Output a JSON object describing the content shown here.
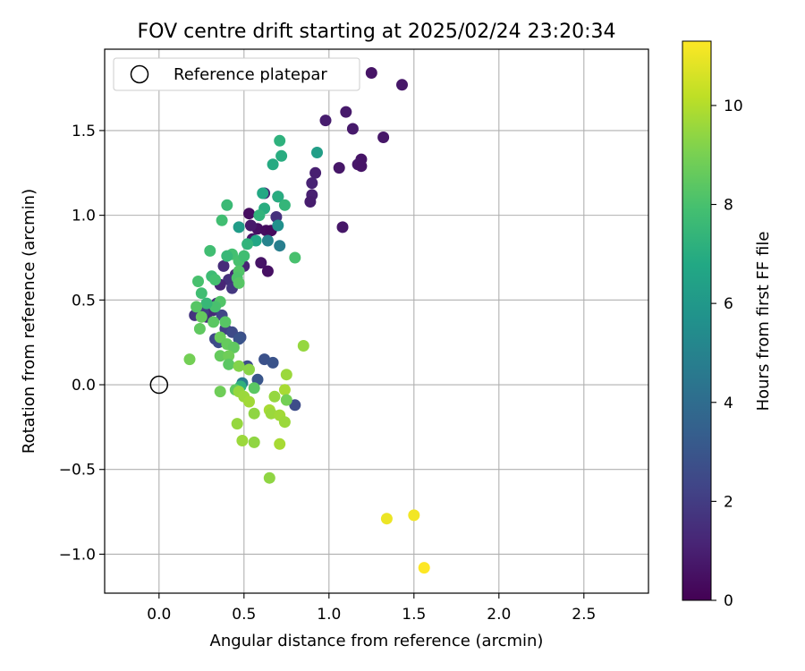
{
  "chart_data": {
    "type": "scatter",
    "title": "FOV centre drift starting at 2025/02/24 23:20:34",
    "xlabel": "Angular distance from reference (arcmin)",
    "ylabel": "Rotation from reference (arcmin)",
    "xlim": [
      -0.32,
      2.88
    ],
    "ylim": [
      -1.23,
      1.98
    ],
    "xticks": [
      0.0,
      0.5,
      1.0,
      1.5,
      2.0,
      2.5
    ],
    "xtick_labels": [
      "0.0",
      "0.5",
      "1.0",
      "1.5",
      "2.0",
      "2.5"
    ],
    "yticks": [
      -1.0,
      -0.5,
      0.0,
      0.5,
      1.0,
      1.5
    ],
    "ytick_labels": [
      "−1.0",
      "−0.5",
      "0.0",
      "0.5",
      "1.0",
      "1.5"
    ],
    "grid": true,
    "legend": {
      "placement": "upper-left",
      "entries": [
        "Reference platepar"
      ]
    },
    "reference_point": {
      "x": 0.0,
      "y": 0.0
    },
    "colorbar": {
      "label": "Hours from first FF file",
      "colormap": "viridis",
      "range": [
        0,
        11.3
      ],
      "ticks": [
        0,
        2,
        4,
        6,
        8,
        10
      ],
      "tick_labels": [
        "0",
        "2",
        "4",
        "6",
        "8",
        "10"
      ]
    },
    "points": [
      [
        1.25,
        1.84,
        0.6
      ],
      [
        1.43,
        1.77,
        0.7
      ],
      [
        1.1,
        1.61,
        0.8
      ],
      [
        0.98,
        1.56,
        0.9
      ],
      [
        1.14,
        1.51,
        0.8
      ],
      [
        1.32,
        1.46,
        0.7
      ],
      [
        1.19,
        1.33,
        0.6
      ],
      [
        1.17,
        1.3,
        0.7
      ],
      [
        1.19,
        1.29,
        0.6
      ],
      [
        1.06,
        1.28,
        0.7
      ],
      [
        0.92,
        1.25,
        1.0
      ],
      [
        0.9,
        1.19,
        1.1
      ],
      [
        0.9,
        1.12,
        1.0
      ],
      [
        0.89,
        1.08,
        0.9
      ],
      [
        1.08,
        0.93,
        0.7
      ],
      [
        0.53,
        1.01,
        0.4
      ],
      [
        0.58,
        0.92,
        0.5
      ],
      [
        0.63,
        0.91,
        0.4
      ],
      [
        0.66,
        0.91,
        0.3
      ],
      [
        0.6,
        0.72,
        0.6
      ],
      [
        0.64,
        0.67,
        0.5
      ],
      [
        0.54,
        0.94,
        0.8
      ],
      [
        0.55,
        0.86,
        0.7
      ],
      [
        0.5,
        0.7,
        1.1
      ],
      [
        0.45,
        0.65,
        1.2
      ],
      [
        0.38,
        0.7,
        1.4
      ],
      [
        0.41,
        0.62,
        1.6
      ],
      [
        0.43,
        0.57,
        1.8
      ],
      [
        0.36,
        0.59,
        1.2
      ],
      [
        0.34,
        0.48,
        1.5
      ],
      [
        0.32,
        0.44,
        1.3
      ],
      [
        0.28,
        0.4,
        1.4
      ],
      [
        0.21,
        0.41,
        1.7
      ],
      [
        0.26,
        0.43,
        2.0
      ],
      [
        0.37,
        0.41,
        2.3
      ],
      [
        0.39,
        0.33,
        2.1
      ],
      [
        0.33,
        0.27,
        2.4
      ],
      [
        0.35,
        0.25,
        2.6
      ],
      [
        0.43,
        0.31,
        2.5
      ],
      [
        0.48,
        0.28,
        2.7
      ],
      [
        0.47,
        0.27,
        2.9
      ],
      [
        0.52,
        0.11,
        2.6
      ],
      [
        0.62,
        0.15,
        2.8
      ],
      [
        0.67,
        0.13,
        2.9
      ],
      [
        0.58,
        0.03,
        3.0
      ],
      [
        0.8,
        -0.12,
        2.6
      ],
      [
        0.49,
        0.01,
        4.6
      ],
      [
        0.62,
        1.13,
        1.2
      ],
      [
        0.69,
        0.99,
        1.6
      ],
      [
        0.71,
        0.82,
        4.8
      ],
      [
        0.7,
        1.11,
        2.0
      ],
      [
        0.64,
        0.85,
        5.0
      ],
      [
        0.7,
        0.94,
        5.6
      ],
      [
        0.47,
        0.93,
        6.2
      ],
      [
        0.57,
        0.85,
        6.7
      ],
      [
        0.52,
        0.83,
        7.3
      ],
      [
        0.61,
        1.13,
        6.8
      ],
      [
        0.62,
        1.04,
        7.0
      ],
      [
        0.59,
        1.0,
        7.3
      ],
      [
        0.7,
        1.11,
        7.0
      ],
      [
        0.74,
        1.06,
        7.4
      ],
      [
        0.67,
        1.3,
        6.9
      ],
      [
        0.71,
        1.44,
        7.2
      ],
      [
        0.72,
        1.35,
        7.0
      ],
      [
        0.93,
        1.37,
        6.3
      ],
      [
        0.8,
        0.75,
        8.0
      ],
      [
        0.4,
        1.06,
        7.6
      ],
      [
        0.37,
        0.97,
        7.8
      ],
      [
        0.3,
        0.79,
        7.8
      ],
      [
        0.43,
        0.77,
        7.9
      ],
      [
        0.47,
        0.73,
        8.0
      ],
      [
        0.5,
        0.76,
        7.8
      ],
      [
        0.4,
        0.76,
        7.5
      ],
      [
        0.31,
        0.64,
        7.7
      ],
      [
        0.33,
        0.62,
        7.9
      ],
      [
        0.23,
        0.61,
        8.0
      ],
      [
        0.47,
        0.67,
        8.2
      ],
      [
        0.46,
        0.63,
        8.1
      ],
      [
        0.47,
        0.6,
        8.3
      ],
      [
        0.25,
        0.54,
        7.8
      ],
      [
        0.36,
        0.49,
        8.2
      ],
      [
        0.33,
        0.46,
        8.0
      ],
      [
        0.28,
        0.48,
        7.5
      ],
      [
        0.22,
        0.46,
        8.3
      ],
      [
        0.25,
        0.4,
        8.6
      ],
      [
        0.32,
        0.37,
        8.4
      ],
      [
        0.39,
        0.37,
        8.3
      ],
      [
        0.24,
        0.33,
        8.5
      ],
      [
        0.36,
        0.28,
        8.7
      ],
      [
        0.4,
        0.24,
        8.6
      ],
      [
        0.44,
        0.22,
        8.5
      ],
      [
        0.36,
        0.17,
        8.6
      ],
      [
        0.41,
        0.17,
        8.8
      ],
      [
        0.41,
        0.12,
        8.4
      ],
      [
        0.18,
        0.15,
        8.9
      ],
      [
        0.48,
        -0.01,
        7.2
      ],
      [
        0.36,
        -0.04,
        8.8
      ],
      [
        0.45,
        -0.03,
        8.5
      ],
      [
        0.56,
        -0.02,
        8.4
      ],
      [
        0.47,
        0.11,
        9.2
      ],
      [
        0.53,
        0.09,
        9.3
      ],
      [
        0.47,
        -0.04,
        9.5
      ],
      [
        0.5,
        -0.07,
        9.6
      ],
      [
        0.53,
        -0.1,
        9.7
      ],
      [
        0.56,
        -0.17,
        9.4
      ],
      [
        0.46,
        -0.23,
        9.5
      ],
      [
        0.49,
        -0.33,
        9.6
      ],
      [
        0.56,
        -0.34,
        9.4
      ],
      [
        0.65,
        -0.15,
        9.8
      ],
      [
        0.66,
        -0.17,
        9.6
      ],
      [
        0.65,
        -0.55,
        9.4
      ],
      [
        0.68,
        -0.07,
        9.5
      ],
      [
        0.71,
        -0.18,
        9.7
      ],
      [
        0.71,
        -0.35,
        9.8
      ],
      [
        0.74,
        -0.22,
        9.6
      ],
      [
        0.75,
        0.06,
        9.6
      ],
      [
        0.74,
        -0.03,
        9.8
      ],
      [
        0.75,
        -0.09,
        8.9
      ],
      [
        0.85,
        0.23,
        9.5
      ],
      [
        1.34,
        -0.79,
        11.0
      ],
      [
        1.5,
        -0.77,
        11.1
      ],
      [
        1.56,
        -1.08,
        11.3
      ]
    ]
  }
}
